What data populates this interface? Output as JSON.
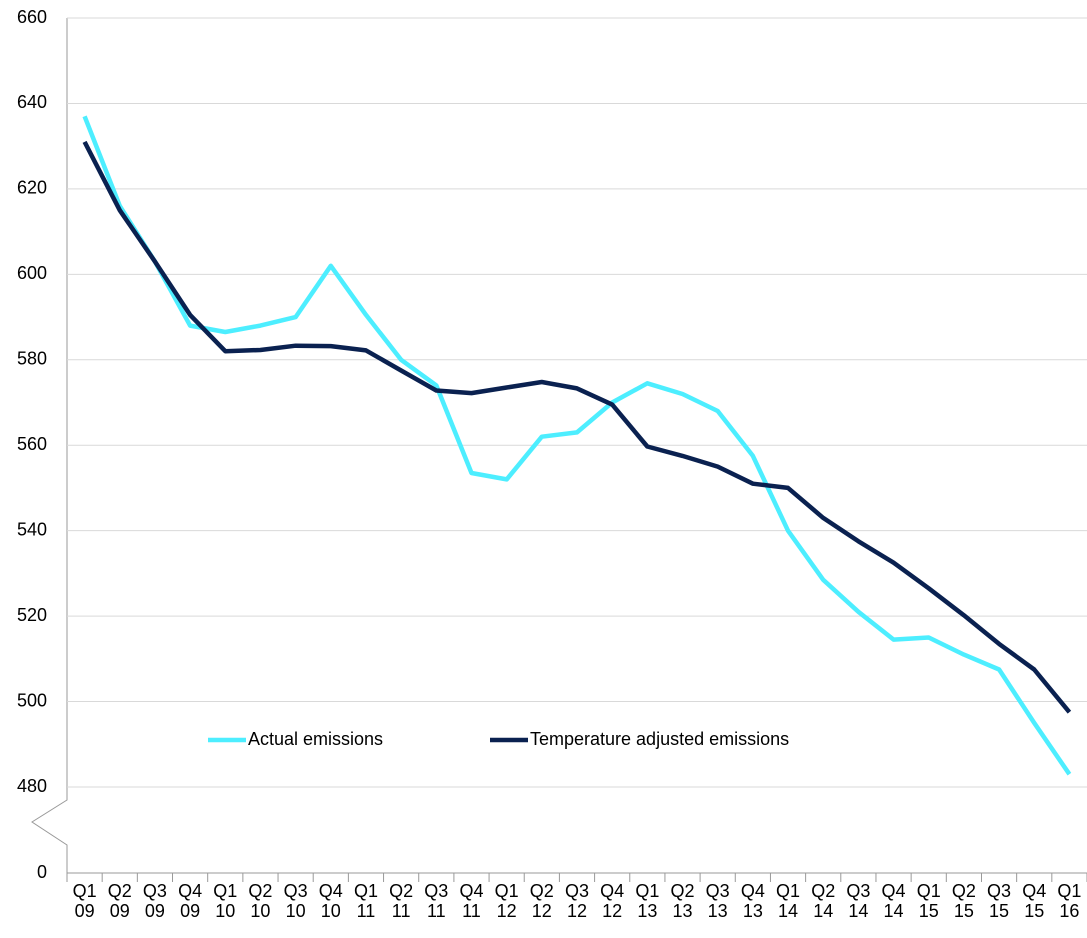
{
  "chart_data": {
    "type": "line",
    "categories": [
      "Q1 09",
      "Q2 09",
      "Q3 09",
      "Q4 09",
      "Q1 10",
      "Q2 10",
      "Q3 10",
      "Q4 10",
      "Q1 11",
      "Q2 11",
      "Q3 11",
      "Q4 11",
      "Q1 12",
      "Q2 12",
      "Q3 12",
      "Q4 12",
      "Q1 13",
      "Q2 13",
      "Q3 13",
      "Q4 13",
      "Q1 14",
      "Q2 14",
      "Q3 14",
      "Q4 14",
      "Q1 15",
      "Q2 15",
      "Q3 15",
      "Q4 15",
      "Q1 16"
    ],
    "series": [
      {
        "name": "Actual emissions",
        "color": "#4deeff",
        "values": [
          637,
          616,
          603,
          588,
          586.5,
          588,
          590,
          602,
          590.5,
          580,
          574,
          553.5,
          552,
          562,
          563,
          570,
          574.5,
          572,
          568,
          557.5,
          540,
          528.5,
          521,
          514.5,
          515,
          511,
          507.5,
          495,
          483
        ]
      },
      {
        "name": "Temperature adjusted emissions",
        "color": "#0a2150",
        "values": [
          631,
          615,
          603,
          590.5,
          582,
          582.3,
          583.3,
          583.2,
          582.2,
          577.5,
          572.8,
          572.2,
          573.5,
          574.8,
          573.3,
          569.5,
          559.7,
          557.5,
          555,
          551,
          550,
          543,
          537.5,
          532.5,
          526.5,
          520.2,
          513.5,
          507.5,
          497.5
        ]
      }
    ],
    "ylim": [
      480,
      660
    ],
    "yticks": [
      480,
      500,
      520,
      540,
      560,
      580,
      600,
      620,
      640,
      660
    ],
    "axis_break_tick": 0,
    "grid": true
  }
}
